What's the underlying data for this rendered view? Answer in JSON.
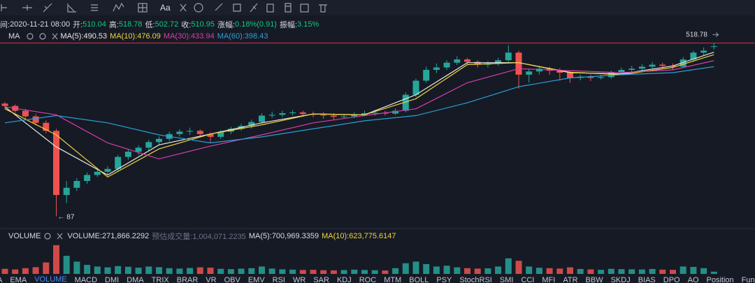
{
  "toolbar": {
    "text_tool": "Aa"
  },
  "info": [
    {
      "label": "间:",
      "value": "2020-11-21 08:00"
    },
    {
      "label": "开:",
      "value": "510.04"
    },
    {
      "label": "高:",
      "value": "518.78"
    },
    {
      "label": "低:",
      "value": "502.72"
    },
    {
      "label": "收:",
      "value": "510.95"
    },
    {
      "label": "涨幅:",
      "value": "0.18%(0.91)"
    },
    {
      "label": "振幅:",
      "value": "3.15%"
    }
  ],
  "indicator": "MA",
  "volume_header": {
    "title": "VOLUME",
    "items": [
      {
        "text": "VOLUME:271,866.2292",
        "color": "#d8dbe2"
      },
      {
        "text": "预估成交量:1,004,071.2235",
        "color": "#6b7185"
      },
      {
        "text": "MA(5):700,969.3359",
        "color": "#d8dbe2"
      },
      {
        "text": "MA(10):623,775.6147",
        "color": "#f0d43a"
      }
    ]
  },
  "tabs": [
    "A",
    "EMA",
    "VOLUME",
    "MACD",
    "DMI",
    "DMA",
    "TRIX",
    "BRAR",
    "VR",
    "OBV",
    "EMV",
    "RSI",
    "WR",
    "SAR",
    "KDJ",
    "ROC",
    "MTM",
    "BOLL",
    "PSY",
    "StochRSI",
    "SMI",
    "CCI",
    "MFI",
    "ATR",
    "BBW",
    "SKDJ",
    "BIAS",
    "DPO",
    "AO",
    "Position",
    "Fundflow"
  ],
  "active_tab": 2,
  "chart_data": {
    "type": "candlestick",
    "ylim": [
      60,
      560
    ],
    "vlim": [
      0,
      4000000
    ],
    "up_color": "#26a69a",
    "down_color": "#ef5350",
    "price_line_color": "#e0314b",
    "high_label": "518.78",
    "low_label": "← 87",
    "ohlc": [
      [
        368,
        372,
        355,
        362
      ],
      [
        362,
        366,
        345,
        350
      ],
      [
        350,
        355,
        330,
        336
      ],
      [
        336,
        342,
        314,
        320
      ],
      [
        320,
        326,
        294,
        300
      ],
      [
        300,
        305,
        87,
        140
      ],
      [
        140,
        175,
        120,
        158
      ],
      [
        158,
        182,
        150,
        175
      ],
      [
        175,
        196,
        168,
        190
      ],
      [
        190,
        204,
        185,
        198
      ],
      [
        198,
        212,
        192,
        205
      ],
      [
        205,
        240,
        200,
        235
      ],
      [
        235,
        255,
        228,
        248
      ],
      [
        248,
        264,
        240,
        258
      ],
      [
        258,
        278,
        250,
        272
      ],
      [
        272,
        286,
        265,
        280
      ],
      [
        280,
        298,
        274,
        292
      ],
      [
        292,
        304,
        286,
        298
      ],
      [
        298,
        308,
        290,
        300
      ],
      [
        300,
        304,
        284,
        292
      ],
      [
        292,
        296,
        270,
        285
      ],
      [
        285,
        302,
        280,
        298
      ],
      [
        298,
        310,
        292,
        305
      ],
      [
        305,
        318,
        300,
        312
      ],
      [
        312,
        328,
        306,
        322
      ],
      [
        322,
        344,
        318,
        338
      ],
      [
        338,
        348,
        332,
        340
      ],
      [
        340,
        350,
        334,
        344
      ],
      [
        344,
        352,
        338,
        346
      ],
      [
        346,
        350,
        336,
        342
      ],
      [
        342,
        348,
        334,
        340
      ],
      [
        340,
        346,
        330,
        338
      ],
      [
        338,
        344,
        326,
        335
      ],
      [
        335,
        342,
        330,
        336
      ],
      [
        336,
        346,
        332,
        340
      ],
      [
        340,
        350,
        336,
        344
      ],
      [
        344,
        352,
        338,
        345
      ],
      [
        345,
        350,
        338,
        343
      ],
      [
        343,
        356,
        340,
        350
      ],
      [
        350,
        396,
        346,
        390
      ],
      [
        390,
        430,
        384,
        425
      ],
      [
        425,
        460,
        420,
        452
      ],
      [
        452,
        468,
        444,
        458
      ],
      [
        458,
        476,
        452,
        470
      ],
      [
        470,
        486,
        464,
        478
      ],
      [
        478,
        482,
        464,
        472
      ],
      [
        472,
        476,
        458,
        465
      ],
      [
        465,
        474,
        458,
        468
      ],
      [
        468,
        482,
        462,
        476
      ],
      [
        476,
        514,
        470,
        495
      ],
      [
        495,
        500,
        405,
        440
      ],
      [
        440,
        455,
        420,
        448
      ],
      [
        448,
        462,
        440,
        455
      ],
      [
        455,
        460,
        440,
        450
      ],
      [
        450,
        456,
        425,
        445
      ],
      [
        445,
        448,
        420,
        432
      ],
      [
        432,
        440,
        426,
        435
      ],
      [
        435,
        440,
        424,
        432
      ],
      [
        432,
        440,
        428,
        434
      ],
      [
        434,
        450,
        430,
        445
      ],
      [
        445,
        458,
        440,
        452
      ],
      [
        452,
        462,
        446,
        455
      ],
      [
        455,
        466,
        450,
        460
      ],
      [
        460,
        472,
        455,
        465
      ],
      [
        465,
        470,
        456,
        462
      ],
      [
        462,
        468,
        452,
        460
      ],
      [
        460,
        484,
        456,
        478
      ],
      [
        478,
        500,
        472,
        495
      ],
      [
        495,
        508,
        488,
        500
      ],
      [
        510.04,
        518.78,
        502.72,
        510.95
      ]
    ],
    "volume": [
      620000,
      540000,
      700000,
      820000,
      1400000,
      3500000,
      2200000,
      1500000,
      1100000,
      900000,
      800000,
      950000,
      870000,
      760000,
      900000,
      820000,
      700000,
      650000,
      720000,
      800000,
      760000,
      620000,
      580000,
      640000,
      700000,
      900000,
      650000,
      560000,
      520000,
      480000,
      500000,
      450000,
      430000,
      470000,
      520000,
      480000,
      450000,
      420000,
      700000,
      1300000,
      1500000,
      1200000,
      900000,
      1000000,
      800000,
      700000,
      650000,
      680000,
      900000,
      1900000,
      1600000,
      900000,
      750000,
      700000,
      650000,
      800000,
      600000,
      550000,
      500000,
      620000,
      580000,
      560000,
      540000,
      600000,
      520000,
      500000,
      900000,
      850000,
      700000,
      271866.2292
    ],
    "ma_index": [
      0,
      5,
      10,
      15,
      20,
      25,
      30,
      35,
      40,
      45,
      50,
      55,
      60,
      65,
      69
    ],
    "series": [
      {
        "name": "MA(5):490.53",
        "color": "#e8e8e8",
        "values": [
          360,
          260,
          190,
          265,
          292,
          320,
          342,
          340,
          390,
          470,
          470,
          445,
          442,
          462,
          496
        ]
      },
      {
        "name": "MA(10):476.09",
        "color": "#f0d43a",
        "values": [
          355,
          290,
          185,
          255,
          292,
          315,
          342,
          340,
          380,
          465,
          470,
          446,
          440,
          458,
          490
        ]
      },
      {
        "name": "MA(30):433.94",
        "color": "#d63fa8",
        "values": [
          360,
          340,
          270,
          230,
          262,
          290,
          320,
          338,
          355,
          420,
          455,
          450,
          445,
          452,
          475
        ]
      },
      {
        "name": "MA(60):398.43",
        "color": "#2a9fd6",
        "values": [
          320,
          338,
          320,
          290,
          270,
          285,
          305,
          325,
          338,
          370,
          410,
          432,
          440,
          445,
          460
        ]
      }
    ]
  }
}
